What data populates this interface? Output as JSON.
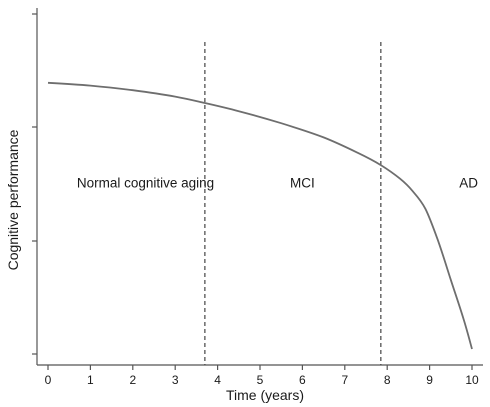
{
  "chart_data": {
    "type": "line",
    "xlabel": "Time (years)",
    "ylabel": "Cognitive performance",
    "xlim": [
      0,
      10
    ],
    "x_ticks": [
      "0",
      "1",
      "2",
      "3",
      "4",
      "5",
      "6",
      "7",
      "8",
      "9",
      "10"
    ],
    "y_tick_labels_shown": false,
    "grid": false,
    "series": [
      {
        "x": [
          0,
          1,
          2,
          3,
          3.7,
          4.5,
          5.5,
          6.5,
          7.3,
          7.85,
          8.3,
          8.6,
          8.9,
          9.2,
          9.5,
          9.8,
          10
        ],
        "y": [
          0.795,
          0.787,
          0.774,
          0.756,
          0.738,
          0.715,
          0.681,
          0.641,
          0.598,
          0.563,
          0.525,
          0.49,
          0.44,
          0.35,
          0.24,
          0.13,
          0.045
        ]
      }
    ],
    "vlines": [
      3.7,
      7.85
    ],
    "annotations": [
      {
        "text": "Normal cognitive aging",
        "x": 2.3,
        "y": 0.5
      },
      {
        "text": "MCI",
        "x": 6.0,
        "y": 0.5
      },
      {
        "text": "AD",
        "x": 10.2,
        "y": 0.5
      }
    ]
  }
}
